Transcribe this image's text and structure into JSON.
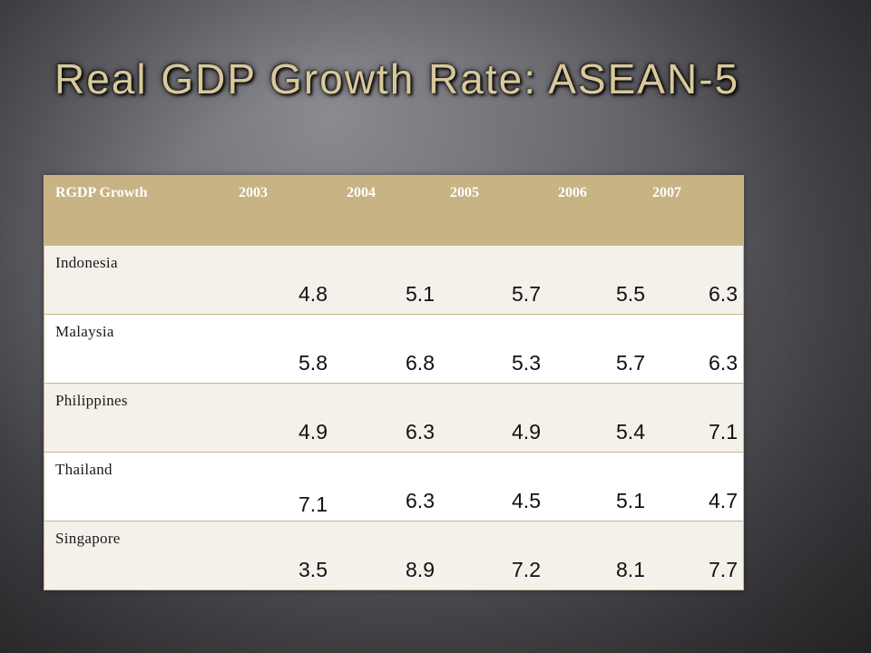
{
  "title": "Real GDP Growth Rate: ASEAN-5",
  "table": {
    "headers": [
      "RGDP Growth",
      "2003",
      "2004",
      "2005",
      "2006",
      "2007"
    ],
    "rows": [
      {
        "country": "Indonesia",
        "values": [
          "4.8",
          "5.1",
          "5.7",
          "5.5",
          "6.3"
        ]
      },
      {
        "country": "Malaysia",
        "values": [
          "5.8",
          "6.8",
          "5.3",
          "5.7",
          "6.3"
        ]
      },
      {
        "country": "Philippines",
        "values": [
          "4.9",
          "6.3",
          "4.9",
          "5.4",
          "7.1"
        ]
      },
      {
        "country": "Thailand",
        "values": [
          "7.1",
          "6.3",
          "4.5",
          "5.1",
          "4.7"
        ]
      },
      {
        "country": "Singapore",
        "values": [
          "3.5",
          "8.9",
          "7.2",
          "8.1",
          "7.7"
        ]
      }
    ]
  },
  "colors": {
    "header_bg": "#c7b383",
    "title_text": "#d9c99a",
    "row_alt_bg": "#f4f1ea"
  }
}
